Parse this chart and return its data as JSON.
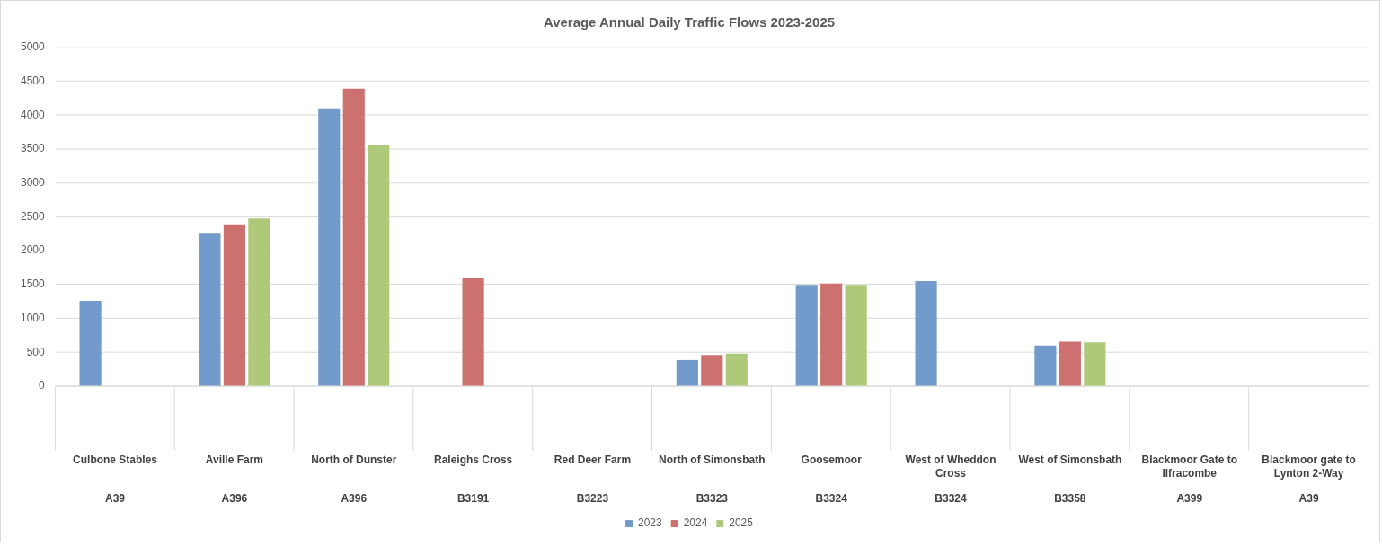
{
  "chart_data": {
    "type": "bar",
    "title": "Average Annual Daily Traffic Flows 2023-2025",
    "categories": [
      "Culbone Stables\nA39",
      "Aville Farm\nA396",
      "North of Dunster\nA396",
      "Raleighs Cross\nB3191",
      "Red Deer Farm\nB3223",
      "North of Simonsbath\nB3323",
      "Goosemoor\nB3324",
      "West of Wheddon Cross\nB3324",
      "West of Simonsbath\nB3358",
      "Blackmoor Gate to Ilfracombe\nA399",
      "Blackmoor gate to Lynton 2-Way\nA39"
    ],
    "series": [
      {
        "name": "2023",
        "color": "#729aca",
        "values": [
          1260,
          2250,
          4100,
          null,
          null,
          385,
          1495,
          1550,
          600,
          null,
          null
        ]
      },
      {
        "name": "2024",
        "color": "#cd7070",
        "values": [
          null,
          2390,
          4390,
          1590,
          null,
          460,
          1515,
          null,
          655,
          null,
          null
        ]
      },
      {
        "name": "2025",
        "color": "#afc97a",
        "values": [
          null,
          2475,
          3560,
          null,
          null,
          480,
          1495,
          null,
          645,
          null,
          null
        ]
      }
    ],
    "ylim": [
      0,
      5000
    ],
    "yticks": [
      0,
      500,
      1000,
      1500,
      2000,
      2500,
      3000,
      3500,
      4000,
      4500,
      5000
    ],
    "grid": "y",
    "legend": "bottom"
  }
}
